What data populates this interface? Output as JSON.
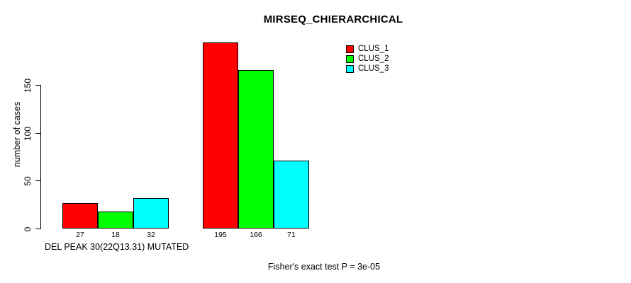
{
  "figure": {
    "title": "MIRSEQ_CHIERARCHICAL",
    "y_axis_label": "number of cases",
    "x_axis_label": "DEL PEAK 30(22Q13.31) MUTATED",
    "annotation": "Fisher's exact test P = 3e-05"
  },
  "legend": {
    "position": "top-right",
    "items": [
      {
        "label": "CLUS_1",
        "color": "#ff0000"
      },
      {
        "label": "CLUS_2",
        "color": "#00ff00"
      },
      {
        "label": "CLUS_3",
        "color": "#00ffff"
      }
    ]
  },
  "chart_data": {
    "type": "bar",
    "title": "MIRSEQ_CHIERARCHICAL",
    "xlabel": "DEL PEAK 30(22Q13.31) MUTATED",
    "ylabel": "number of cases",
    "annotation": "Fisher's exact test P = 3e-05",
    "yticks": [
      0,
      50,
      100,
      150
    ],
    "axis_range": [
      0,
      150
    ],
    "grid": false,
    "legend_position": "top-right-inside",
    "group_count": 2,
    "series": [
      {
        "name": "CLUS_1",
        "color": "#ff0000",
        "values": [
          27,
          195
        ]
      },
      {
        "name": "CLUS_2",
        "color": "#00ff00",
        "values": [
          18,
          166
        ]
      },
      {
        "name": "CLUS_3",
        "color": "#00ffff",
        "values": [
          32,
          71
        ]
      }
    ],
    "bar_value_labels": [
      [
        27,
        18,
        32
      ],
      [
        195,
        166,
        71
      ]
    ]
  }
}
